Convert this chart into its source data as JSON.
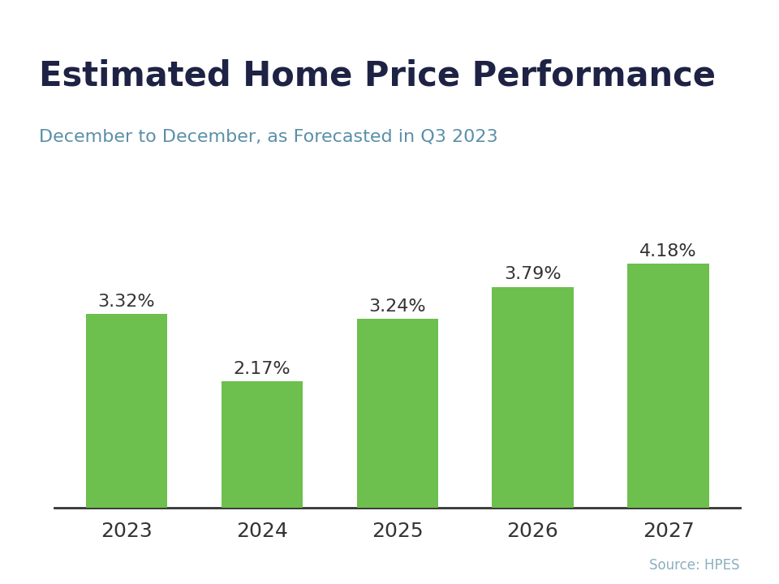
{
  "title": "Estimated Home Price Performance",
  "subtitle": "December to December, as Forecasted in Q3 2023",
  "source": "Source: HPES",
  "categories": [
    "2023",
    "2024",
    "2025",
    "2026",
    "2027"
  ],
  "values": [
    3.32,
    2.17,
    3.24,
    3.79,
    4.18
  ],
  "labels": [
    "3.32%",
    "2.17%",
    "3.24%",
    "3.79%",
    "4.18%"
  ],
  "bar_color": "#6dbf4e",
  "title_color": "#1e2244",
  "subtitle_color": "#5b8fa8",
  "source_color": "#8aafc0",
  "tick_color": "#333333",
  "background_color": "#ffffff",
  "top_bar_color": "#29abe2",
  "top_bar_height": 0.018,
  "ylim": [
    0,
    5.0
  ],
  "title_fontsize": 30,
  "subtitle_fontsize": 16,
  "label_fontsize": 16,
  "tick_fontsize": 18,
  "source_fontsize": 12,
  "bar_width": 0.6
}
